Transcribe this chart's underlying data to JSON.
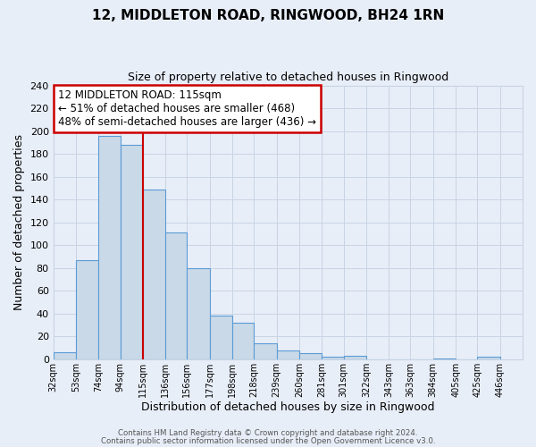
{
  "title": "12, MIDDLETON ROAD, RINGWOOD, BH24 1RN",
  "subtitle": "Size of property relative to detached houses in Ringwood",
  "xlabel": "Distribution of detached houses by size in Ringwood",
  "ylabel": "Number of detached properties",
  "bin_labels": [
    "32sqm",
    "53sqm",
    "74sqm",
    "94sqm",
    "115sqm",
    "136sqm",
    "156sqm",
    "177sqm",
    "198sqm",
    "218sqm",
    "239sqm",
    "260sqm",
    "281sqm",
    "301sqm",
    "322sqm",
    "343sqm",
    "363sqm",
    "384sqm",
    "405sqm",
    "425sqm",
    "446sqm"
  ],
  "bar_values": [
    6,
    87,
    196,
    188,
    149,
    111,
    80,
    38,
    32,
    14,
    8,
    5,
    2,
    3,
    0,
    0,
    0,
    1,
    0,
    2
  ],
  "bin_edges": [
    32,
    53,
    74,
    94,
    115,
    136,
    156,
    177,
    198,
    218,
    239,
    260,
    281,
    301,
    322,
    343,
    363,
    384,
    405,
    425,
    446
  ],
  "bar_color": "#c9d9e8",
  "bar_edge_color": "#5b9bd5",
  "property_line_x": 115,
  "property_line_color": "#cc0000",
  "annotation_title": "12 MIDDLETON ROAD: 115sqm",
  "annotation_line1": "← 51% of detached houses are smaller (468)",
  "annotation_line2": "48% of semi-detached houses are larger (436) →",
  "annotation_box_color": "white",
  "annotation_box_edge": "#cc0000",
  "ylim": [
    0,
    240
  ],
  "yticks": [
    0,
    20,
    40,
    60,
    80,
    100,
    120,
    140,
    160,
    180,
    200,
    220,
    240
  ],
  "grid_color": "#c8d4e4",
  "background_color": "#e8eef8",
  "footer1": "Contains HM Land Registry data © Crown copyright and database right 2024.",
  "footer2": "Contains public sector information licensed under the Open Government Licence v3.0."
}
